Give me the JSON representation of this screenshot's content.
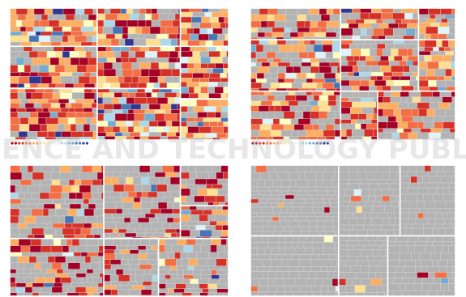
{
  "colors": {
    "background": "#ffffff",
    "no_data": "#b3b3b3",
    "cell_border": "#d8d8d8",
    "group_border": "#ffffff",
    "scale": [
      "#a50026",
      "#d73027",
      "#f46d43",
      "#fdae61",
      "#fee090",
      "#ffffbf",
      "#e0f3f8",
      "#abd9e9",
      "#74add1",
      "#4575b4",
      "#313695"
    ]
  },
  "watermark": {
    "text_line1": "SCIENCE AND TECHNOLOGY PUBLICATIONS",
    "color": "#bdbdbd",
    "opacity": 0.35
  },
  "chart_data": [
    {
      "type": "heatmap",
      "subtype": "treemap",
      "id": "top-left",
      "title": "",
      "legend": {
        "type": "color-ramp",
        "placement": "bottom-left",
        "steps": 22
      },
      "groups_shown": 7,
      "colored_share": 0.86,
      "value_mix": {
        "red": 0.34,
        "orange": 0.34,
        "yellow": 0.14,
        "blue": 0.18
      }
    },
    {
      "type": "heatmap",
      "subtype": "treemap",
      "id": "top-right",
      "title": "",
      "legend": {
        "type": "color-ramp",
        "placement": "bottom-left",
        "steps": 22
      },
      "groups_shown": 8,
      "colored_share": 0.66,
      "value_mix": {
        "red": 0.42,
        "orange": 0.36,
        "yellow": 0.12,
        "blue": 0.1
      }
    },
    {
      "type": "heatmap",
      "subtype": "treemap",
      "id": "bottom-left",
      "title": "",
      "legend": null,
      "groups_shown": 7,
      "colored_share": 0.42,
      "value_mix": {
        "red": 0.55,
        "orange": 0.33,
        "yellow": 0.08,
        "blue": 0.04
      }
    },
    {
      "type": "heatmap",
      "subtype": "treemap",
      "id": "bottom-right",
      "title": "",
      "legend": null,
      "groups_shown": 8,
      "colored_share": 0.045,
      "value_mix": {
        "red": 0.35,
        "orange": 0.4,
        "yellow": 0.1,
        "blue": 0.15
      }
    }
  ]
}
